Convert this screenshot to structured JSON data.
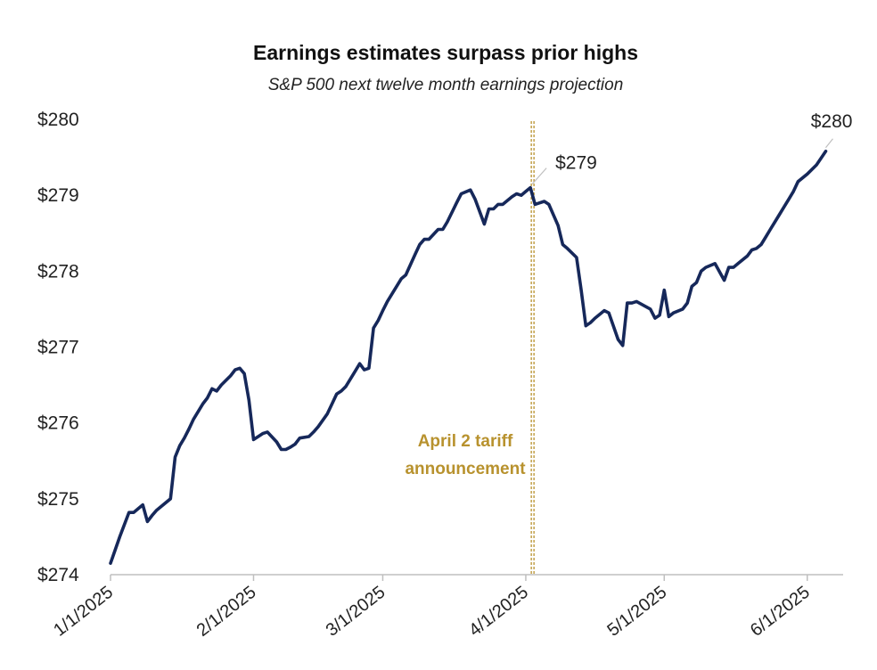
{
  "chart_data": {
    "type": "line",
    "title": "Earnings estimates surpass prior highs",
    "subtitle": "S&P 500 next twelve month earnings projection",
    "xlabel": "",
    "ylabel": "",
    "ylim": [
      274,
      280
    ],
    "xlim": [
      "2025-01-01",
      "2025-06-06"
    ],
    "y_ticks": [
      "$274",
      "$275",
      "$276",
      "$277",
      "$278",
      "$279",
      "$280"
    ],
    "x_ticks": [
      "1/1/2025",
      "2/1/2025",
      "3/1/2025",
      "4/1/2025",
      "5/1/2025",
      "6/1/2025"
    ],
    "grid": false,
    "series": [
      {
        "name": "",
        "color": "#16285a",
        "x": [
          "2025-01-01",
          "2025-01-03",
          "2025-01-05",
          "2025-01-06",
          "2025-01-07",
          "2025-01-08",
          "2025-01-09",
          "2025-01-10",
          "2025-01-11",
          "2025-01-14",
          "2025-01-15",
          "2025-01-16",
          "2025-01-17",
          "2025-01-18",
          "2025-01-19",
          "2025-01-21",
          "2025-01-22",
          "2025-01-23",
          "2025-01-24",
          "2025-01-25",
          "2025-01-27",
          "2025-01-28",
          "2025-01-29",
          "2025-01-30",
          "2025-01-31",
          "2025-02-01",
          "2025-02-02",
          "2025-02-03",
          "2025-02-04",
          "2025-02-06",
          "2025-02-07",
          "2025-02-08",
          "2025-02-09",
          "2025-02-10",
          "2025-02-11",
          "2025-02-13",
          "2025-02-14",
          "2025-02-15",
          "2025-02-17",
          "2025-02-18",
          "2025-02-19",
          "2025-02-20",
          "2025-02-21",
          "2025-02-22",
          "2025-02-23",
          "2025-02-24",
          "2025-02-25",
          "2025-02-26",
          "2025-02-27",
          "2025-02-28",
          "2025-03-01",
          "2025-03-02",
          "2025-03-04",
          "2025-03-05",
          "2025-03-06",
          "2025-03-08",
          "2025-03-09",
          "2025-03-10",
          "2025-03-11",
          "2025-03-13",
          "2025-03-14",
          "2025-03-15",
          "2025-03-17",
          "2025-03-18",
          "2025-03-20",
          "2025-03-21",
          "2025-03-23",
          "2025-03-24",
          "2025-03-25",
          "2025-03-26",
          "2025-03-27",
          "2025-03-29",
          "2025-03-30",
          "2025-03-31",
          "2025-04-01",
          "2025-04-02",
          "2025-04-03",
          "2025-04-04",
          "2025-04-05",
          "2025-04-06",
          "2025-04-08",
          "2025-04-09",
          "2025-04-10",
          "2025-04-12",
          "2025-04-13",
          "2025-04-14",
          "2025-04-15",
          "2025-04-16",
          "2025-04-18",
          "2025-04-19",
          "2025-04-21",
          "2025-04-22",
          "2025-04-23",
          "2025-04-24",
          "2025-04-25",
          "2025-04-28",
          "2025-04-29",
          "2025-04-30",
          "2025-05-01",
          "2025-05-02",
          "2025-05-03",
          "2025-05-05",
          "2025-05-06",
          "2025-05-07",
          "2025-05-08",
          "2025-05-09",
          "2025-05-10",
          "2025-05-12",
          "2025-05-14",
          "2025-05-15",
          "2025-05-16",
          "2025-05-17",
          "2025-05-19",
          "2025-05-20",
          "2025-05-21",
          "2025-05-22",
          "2025-05-23",
          "2025-05-24",
          "2025-05-26",
          "2025-05-27",
          "2025-05-28",
          "2025-05-29",
          "2025-05-30",
          "2025-06-01",
          "2025-06-03",
          "2025-06-05"
        ],
        "y": [
          274.15,
          274.5,
          274.82,
          274.82,
          274.87,
          274.92,
          274.7,
          274.78,
          274.85,
          275.0,
          275.55,
          275.7,
          275.8,
          275.92,
          276.05,
          276.25,
          276.33,
          276.45,
          276.42,
          276.5,
          276.62,
          276.7,
          276.72,
          276.65,
          276.3,
          275.78,
          275.82,
          275.86,
          275.88,
          275.75,
          275.65,
          275.65,
          275.68,
          275.72,
          275.8,
          275.82,
          275.88,
          275.95,
          276.12,
          276.25,
          276.38,
          276.42,
          276.48,
          276.58,
          276.68,
          276.78,
          276.7,
          276.72,
          277.25,
          277.35,
          277.48,
          277.6,
          277.8,
          277.9,
          277.95,
          278.22,
          278.35,
          278.42,
          278.42,
          278.55,
          278.55,
          278.65,
          278.9,
          279.02,
          279.07,
          278.95,
          278.62,
          278.82,
          278.82,
          278.88,
          278.88,
          278.98,
          279.02,
          279.0,
          279.05,
          279.1,
          278.88,
          278.9,
          278.92,
          278.88,
          278.6,
          278.35,
          278.3,
          278.18,
          277.75,
          277.28,
          277.32,
          277.38,
          277.48,
          277.45,
          277.1,
          277.02,
          277.58,
          277.58,
          277.6,
          277.5,
          277.38,
          277.42,
          277.75,
          277.4,
          277.45,
          277.5,
          277.58,
          277.8,
          277.85,
          278.0,
          278.05,
          278.1,
          277.88,
          278.05,
          278.05,
          278.1,
          278.2,
          278.28,
          278.3,
          278.35,
          278.45,
          278.55,
          278.75,
          278.85,
          278.95,
          279.05,
          279.18,
          279.28,
          279.4,
          279.58
        ]
      }
    ],
    "annotations": [
      {
        "type": "vline",
        "x": "2025-04-02",
        "color": "#b8922e",
        "label_lines": [
          "April 2 tariff",
          "announcement"
        ]
      },
      {
        "type": "point-label",
        "x": "2025-04-02",
        "y": 279.1,
        "text": "$279"
      },
      {
        "type": "point-label",
        "x": "2025-06-05",
        "y": 279.58,
        "text": "$280"
      }
    ]
  }
}
